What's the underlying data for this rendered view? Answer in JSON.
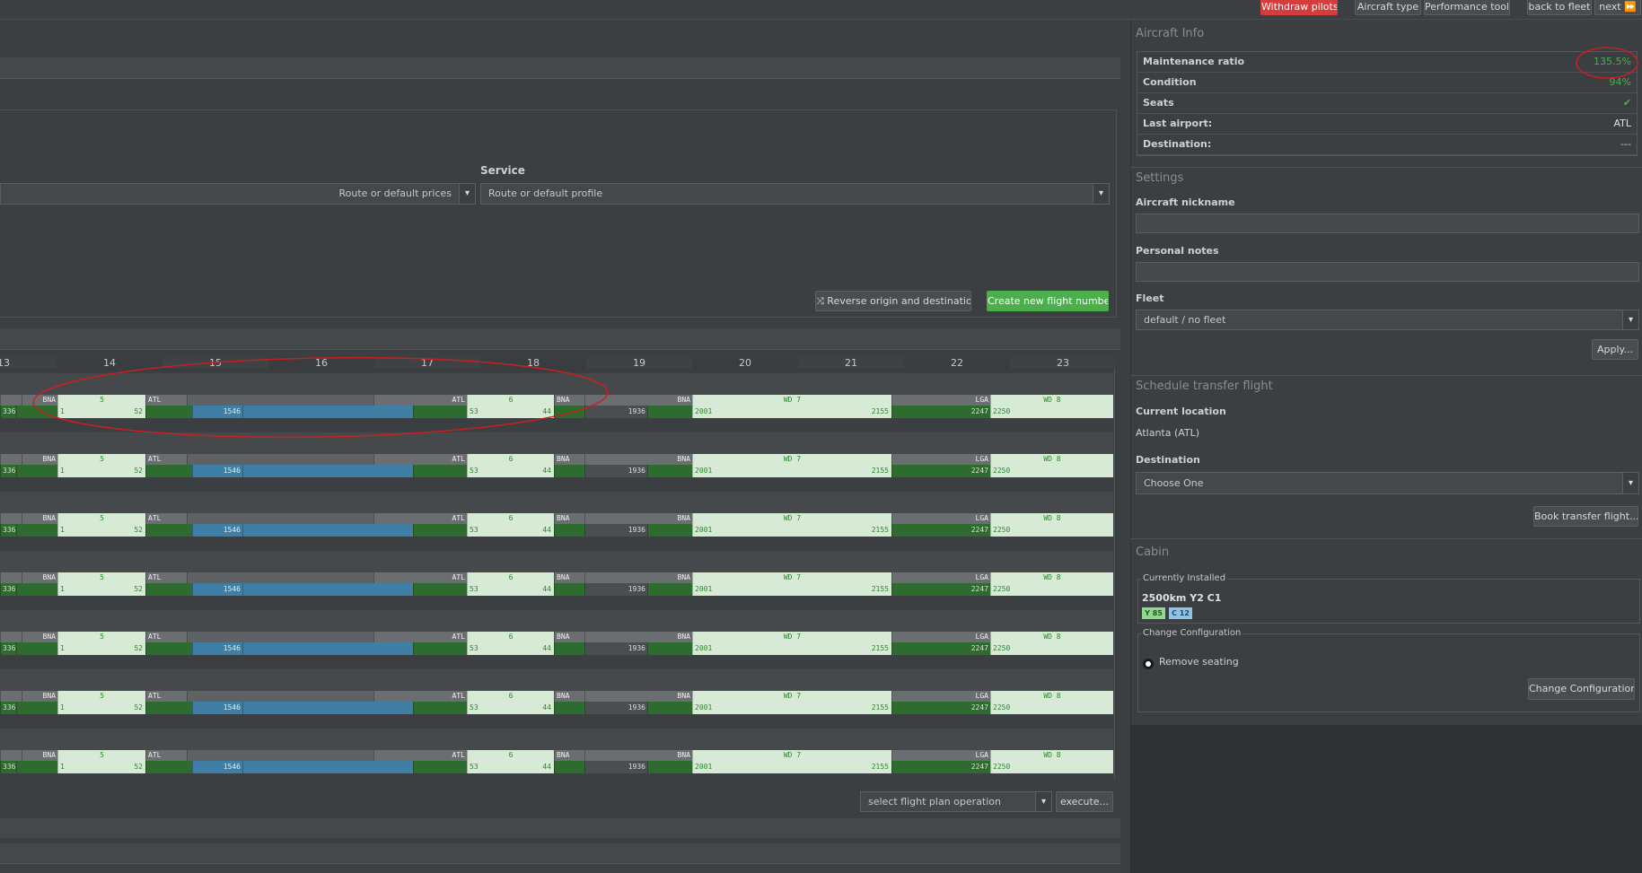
{
  "topbar": {
    "withdraw_pilots": "Withdraw pilots",
    "aircraft_type": "Aircraft type",
    "performance_tool": "Performance tool",
    "back_to_fleet": "back to fleet",
    "next": "next ⏩"
  },
  "form": {
    "service_label": "Service",
    "prices_select": "Route or default prices",
    "profile_select": "Route or default profile",
    "reverse_button": "Reverse origin and destination",
    "create_button": "Create new flight number"
  },
  "timeline": {
    "hours": [
      "13",
      "14",
      "15",
      "16",
      "17",
      "18",
      "19",
      "20",
      "21",
      "22",
      "23"
    ],
    "row": {
      "bna1": "BNA",
      "flight5": "5",
      "atl1": "ATL",
      "atl2": "ATL",
      "flight6": "6",
      "bna2": "BNA",
      "bna3": "BNA",
      "wd7": "WD 7",
      "lga": "LGA",
      "wd8": "WD 8",
      "t336": "336",
      "t1": "1",
      "t52": "52",
      "t1546": "1546",
      "t53": "53",
      "t44": "44",
      "t1936": "1936",
      "t2001": "2001",
      "t2155": "2155",
      "t2247": "2247",
      "t2250": "2250"
    },
    "row_count": 7,
    "operation_select": "select flight plan operation",
    "execute_button": "execute..."
  },
  "aircraft_info": {
    "title": "Aircraft Info",
    "rows": [
      {
        "key": "Maintenance ratio",
        "value": "135.5%",
        "color": "#4cae4c"
      },
      {
        "key": "Condition",
        "value": "94%",
        "color": "#4cae4c"
      },
      {
        "key": "Seats",
        "value": "✔",
        "color": "#4cae4c"
      },
      {
        "key": "Last airport:",
        "value": "ATL",
        "color": "#e0e0e0"
      },
      {
        "key": "Destination:",
        "value": "---",
        "color": "#c8c8c8"
      }
    ]
  },
  "settings": {
    "title": "Settings",
    "nickname_label": "Aircraft nickname",
    "notes_label": "Personal notes",
    "fleet_label": "Fleet",
    "fleet_value": "default / no fleet",
    "apply_button": "Apply..."
  },
  "transfer": {
    "title": "Schedule transfer flight",
    "current_location_label": "Current location",
    "current_location_value": "Atlanta (ATL)",
    "destination_label": "Destination",
    "destination_value": "Choose One",
    "book_button": "Book transfer flight..."
  },
  "cabin": {
    "title": "Cabin",
    "installed_legend": "Currently Installed",
    "config_name": "2500km Y2 C1",
    "badge_y": "Y 85",
    "badge_c": "C 12",
    "change_legend": "Change Configuration",
    "remove_seating": "Remove seating",
    "change_button": "Change Configuration"
  },
  "colors": {
    "accent_green": "#4cae4c",
    "danger_red": "#d63c3c",
    "annotation_red": "#c62020"
  }
}
